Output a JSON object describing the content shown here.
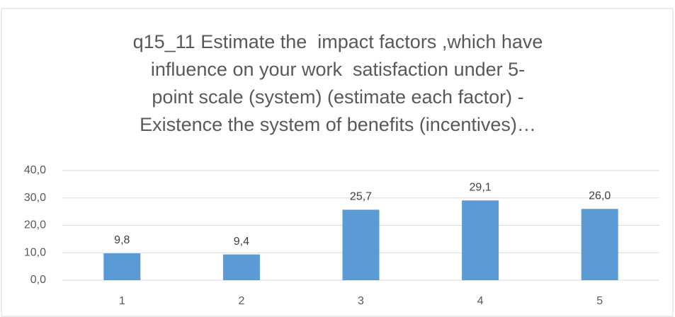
{
  "chart_data": {
    "type": "bar",
    "title": [
      "q15_11 Estimate the  impact factors ,which have",
      "influence on your work  satisfaction under 5-",
      "point scale (system) (estimate each factor) -",
      "Existence the system of benefits (incentives)…"
    ],
    "categories": [
      "1",
      "2",
      "3",
      "4",
      "5"
    ],
    "values": [
      9.8,
      9.4,
      25.7,
      29.1,
      26.0
    ],
    "value_labels": [
      "9,8",
      "9,4",
      "25,7",
      "29,1",
      "26,0"
    ],
    "color": "#5b9bd5",
    "ylim": [
      0,
      40
    ],
    "yticks": [
      {
        "value": 0,
        "label": "0,0"
      },
      {
        "value": 10,
        "label": "10,0"
      },
      {
        "value": 20,
        "label": "20,0"
      },
      {
        "value": 30,
        "label": "30,0"
      },
      {
        "value": 40,
        "label": "40,0"
      }
    ],
    "grid": true
  }
}
